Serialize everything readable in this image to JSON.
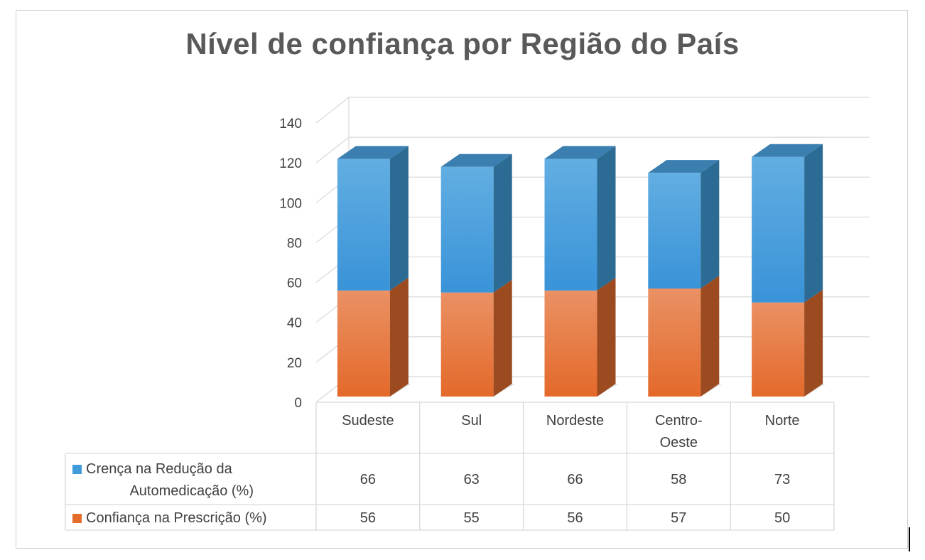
{
  "chart_data": {
    "type": "bar",
    "stacked": true,
    "style": "3d-stacked-column-with-data-table",
    "title": "Nível de confiança por Região do País",
    "categories": [
      [
        "Sudeste"
      ],
      [
        "Sul"
      ],
      [
        "Nordeste"
      ],
      [
        "Centro-",
        "Oeste"
      ],
      [
        "Norte"
      ]
    ],
    "series": [
      {
        "name": "Confiança na Prescrição (%)",
        "name_lines": [
          "Confiança na Prescrição (%)"
        ],
        "values": [
          56,
          55,
          56,
          57,
          50
        ],
        "color": "#E46C2B",
        "color_side": "#9C4A1F",
        "color_top": "#B55522"
      },
      {
        "name": "Crença na Redução da Automedicação (%)",
        "name_lines": [
          "Crença na Redução da",
          "Automedicação (%)"
        ],
        "values": [
          66,
          63,
          66,
          58,
          73
        ],
        "color": "#3F9BD9",
        "color_side": "#2C6B93",
        "color_top": "#3A7FB0"
      }
    ],
    "ylim": [
      0,
      140
    ],
    "yticks": [
      0,
      20,
      40,
      60,
      80,
      100,
      120,
      140
    ],
    "grid": true,
    "legend": "data-table"
  }
}
